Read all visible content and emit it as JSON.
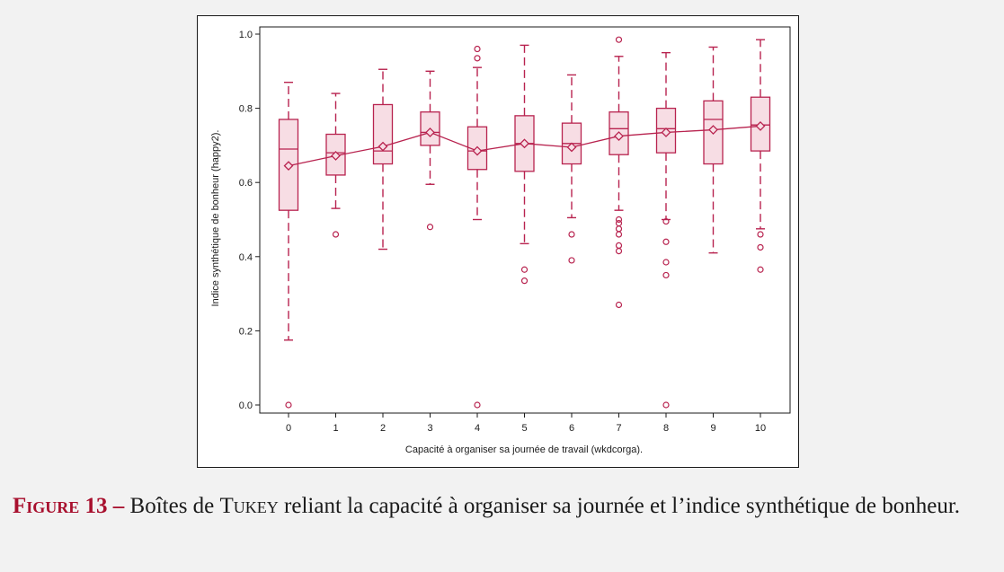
{
  "colors": {
    "series": "#b8234f",
    "box_fill": "#f7dde4",
    "caption_accent": "#a8102e"
  },
  "chart_data": {
    "type": "box",
    "xlabel": "Capacité à organiser sa journée de travail (wkdcorga).",
    "ylabel": "Indice synthétique de bonheur (happy2).",
    "ylim": [
      0.0,
      1.0
    ],
    "yticks": [
      "0.0",
      "0.2",
      "0.4",
      "0.6",
      "0.8",
      "1.0"
    ],
    "categories": [
      "0",
      "1",
      "2",
      "3",
      "4",
      "5",
      "6",
      "7",
      "8",
      "9",
      "10"
    ],
    "grid": false,
    "boxes": [
      {
        "q1": 0.525,
        "median": 0.69,
        "q3": 0.77,
        "whisker_low": 0.175,
        "whisker_high": 0.87,
        "mean": 0.645,
        "outliers": [
          0.0
        ]
      },
      {
        "q1": 0.62,
        "median": 0.68,
        "q3": 0.73,
        "whisker_low": 0.53,
        "whisker_high": 0.84,
        "mean": 0.672,
        "outliers": [
          0.46
        ]
      },
      {
        "q1": 0.65,
        "median": 0.685,
        "q3": 0.81,
        "whisker_low": 0.42,
        "whisker_high": 0.905,
        "mean": 0.697,
        "outliers": []
      },
      {
        "q1": 0.7,
        "median": 0.735,
        "q3": 0.79,
        "whisker_low": 0.595,
        "whisker_high": 0.9,
        "mean": 0.735,
        "outliers": [
          0.48
        ]
      },
      {
        "q1": 0.635,
        "median": 0.685,
        "q3": 0.75,
        "whisker_low": 0.5,
        "whisker_high": 0.91,
        "mean": 0.685,
        "outliers": [
          0.96,
          0.935,
          0.0
        ]
      },
      {
        "q1": 0.63,
        "median": 0.705,
        "q3": 0.78,
        "whisker_low": 0.435,
        "whisker_high": 0.97,
        "mean": 0.705,
        "outliers": [
          0.365,
          0.335
        ]
      },
      {
        "q1": 0.65,
        "median": 0.705,
        "q3": 0.76,
        "whisker_low": 0.505,
        "whisker_high": 0.89,
        "mean": 0.695,
        "outliers": [
          0.46,
          0.39
        ]
      },
      {
        "q1": 0.675,
        "median": 0.745,
        "q3": 0.79,
        "whisker_low": 0.525,
        "whisker_high": 0.94,
        "mean": 0.725,
        "outliers": [
          0.985,
          0.5,
          0.49,
          0.475,
          0.46,
          0.43,
          0.415,
          0.27
        ]
      },
      {
        "q1": 0.68,
        "median": 0.745,
        "q3": 0.8,
        "whisker_low": 0.5,
        "whisker_high": 0.95,
        "mean": 0.735,
        "outliers": [
          0.495,
          0.44,
          0.385,
          0.35,
          0.0
        ]
      },
      {
        "q1": 0.65,
        "median": 0.77,
        "q3": 0.82,
        "whisker_low": 0.41,
        "whisker_high": 0.965,
        "mean": 0.742,
        "outliers": []
      },
      {
        "q1": 0.685,
        "median": 0.755,
        "q3": 0.83,
        "whisker_low": 0.475,
        "whisker_high": 0.985,
        "mean": 0.752,
        "outliers": [
          0.46,
          0.425,
          0.365
        ]
      }
    ]
  },
  "caption": {
    "prefix": "Figure 13 –",
    "text_before": " Boîtes de ",
    "name": "Tukey",
    "text_after": " reliant la capacité à organiser sa journée et l’indice synthétique de bonheur."
  }
}
